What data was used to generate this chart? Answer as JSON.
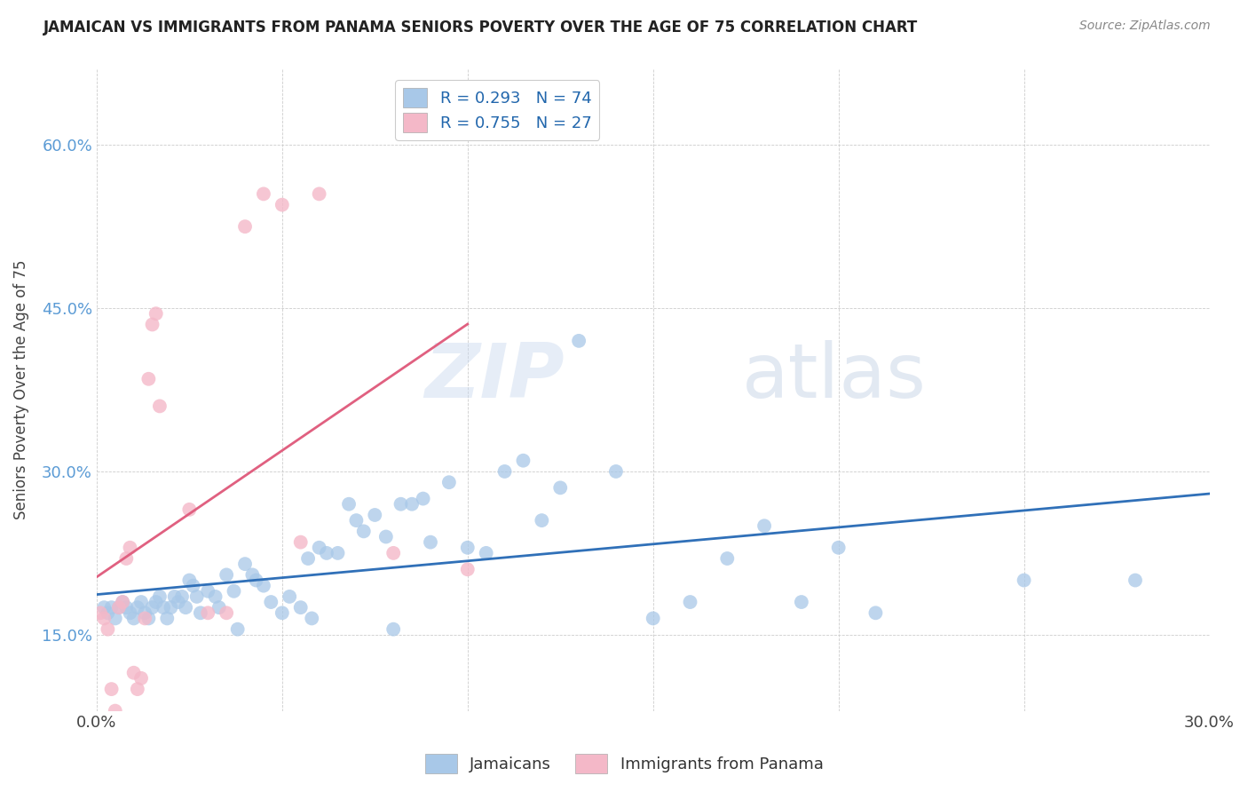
{
  "title": "JAMAICAN VS IMMIGRANTS FROM PANAMA SENIORS POVERTY OVER THE AGE OF 75 CORRELATION CHART",
  "source": "Source: ZipAtlas.com",
  "ylabel": "Seniors Poverty Over the Age of 75",
  "xlim": [
    0.0,
    0.3
  ],
  "ylim": [
    0.08,
    0.67
  ],
  "xticks": [
    0.0,
    0.05,
    0.1,
    0.15,
    0.2,
    0.25,
    0.3
  ],
  "xtick_labels": [
    "0.0%",
    "",
    "",
    "",
    "",
    "",
    "30.0%"
  ],
  "yticks": [
    0.15,
    0.3,
    0.45,
    0.6
  ],
  "ytick_labels": [
    "15.0%",
    "30.0%",
    "45.0%",
    "60.0%"
  ],
  "R_blue": 0.293,
  "N_blue": 74,
  "R_pink": 0.755,
  "N_pink": 27,
  "legend_label_blue": "Jamaicans",
  "legend_label_pink": "Immigrants from Panama",
  "blue_color": "#a8c8e8",
  "pink_color": "#f4b8c8",
  "blue_line_color": "#3070b8",
  "pink_line_color": "#e06080",
  "watermark_zip": "ZIP",
  "watermark_atlas": "atlas",
  "background_color": "#ffffff",
  "blue_x": [
    0.002,
    0.003,
    0.004,
    0.005,
    0.006,
    0.007,
    0.008,
    0.009,
    0.01,
    0.011,
    0.012,
    0.013,
    0.014,
    0.015,
    0.016,
    0.017,
    0.018,
    0.019,
    0.02,
    0.021,
    0.022,
    0.023,
    0.024,
    0.025,
    0.026,
    0.027,
    0.028,
    0.03,
    0.032,
    0.033,
    0.035,
    0.037,
    0.038,
    0.04,
    0.042,
    0.043,
    0.045,
    0.047,
    0.05,
    0.052,
    0.055,
    0.057,
    0.058,
    0.06,
    0.062,
    0.065,
    0.068,
    0.07,
    0.072,
    0.075,
    0.078,
    0.08,
    0.082,
    0.085,
    0.088,
    0.09,
    0.095,
    0.1,
    0.105,
    0.11,
    0.115,
    0.12,
    0.125,
    0.13,
    0.14,
    0.15,
    0.16,
    0.17,
    0.18,
    0.19,
    0.2,
    0.21,
    0.25,
    0.28
  ],
  "blue_y": [
    0.175,
    0.17,
    0.175,
    0.165,
    0.175,
    0.18,
    0.175,
    0.17,
    0.165,
    0.175,
    0.18,
    0.17,
    0.165,
    0.175,
    0.18,
    0.185,
    0.175,
    0.165,
    0.175,
    0.185,
    0.18,
    0.185,
    0.175,
    0.2,
    0.195,
    0.185,
    0.17,
    0.19,
    0.185,
    0.175,
    0.205,
    0.19,
    0.155,
    0.215,
    0.205,
    0.2,
    0.195,
    0.18,
    0.17,
    0.185,
    0.175,
    0.22,
    0.165,
    0.23,
    0.225,
    0.225,
    0.27,
    0.255,
    0.245,
    0.26,
    0.24,
    0.155,
    0.27,
    0.27,
    0.275,
    0.235,
    0.29,
    0.23,
    0.225,
    0.3,
    0.31,
    0.255,
    0.285,
    0.42,
    0.3,
    0.165,
    0.18,
    0.22,
    0.25,
    0.18,
    0.23,
    0.17,
    0.2,
    0.2
  ],
  "pink_x": [
    0.001,
    0.002,
    0.003,
    0.004,
    0.005,
    0.006,
    0.007,
    0.008,
    0.009,
    0.01,
    0.011,
    0.012,
    0.013,
    0.014,
    0.015,
    0.016,
    0.017,
    0.025,
    0.03,
    0.035,
    0.04,
    0.045,
    0.05,
    0.055,
    0.06,
    0.08,
    0.1
  ],
  "pink_y": [
    0.17,
    0.165,
    0.155,
    0.1,
    0.08,
    0.175,
    0.18,
    0.22,
    0.23,
    0.115,
    0.1,
    0.11,
    0.165,
    0.385,
    0.435,
    0.445,
    0.36,
    0.265,
    0.17,
    0.17,
    0.525,
    0.555,
    0.545,
    0.235,
    0.555,
    0.225,
    0.21
  ]
}
